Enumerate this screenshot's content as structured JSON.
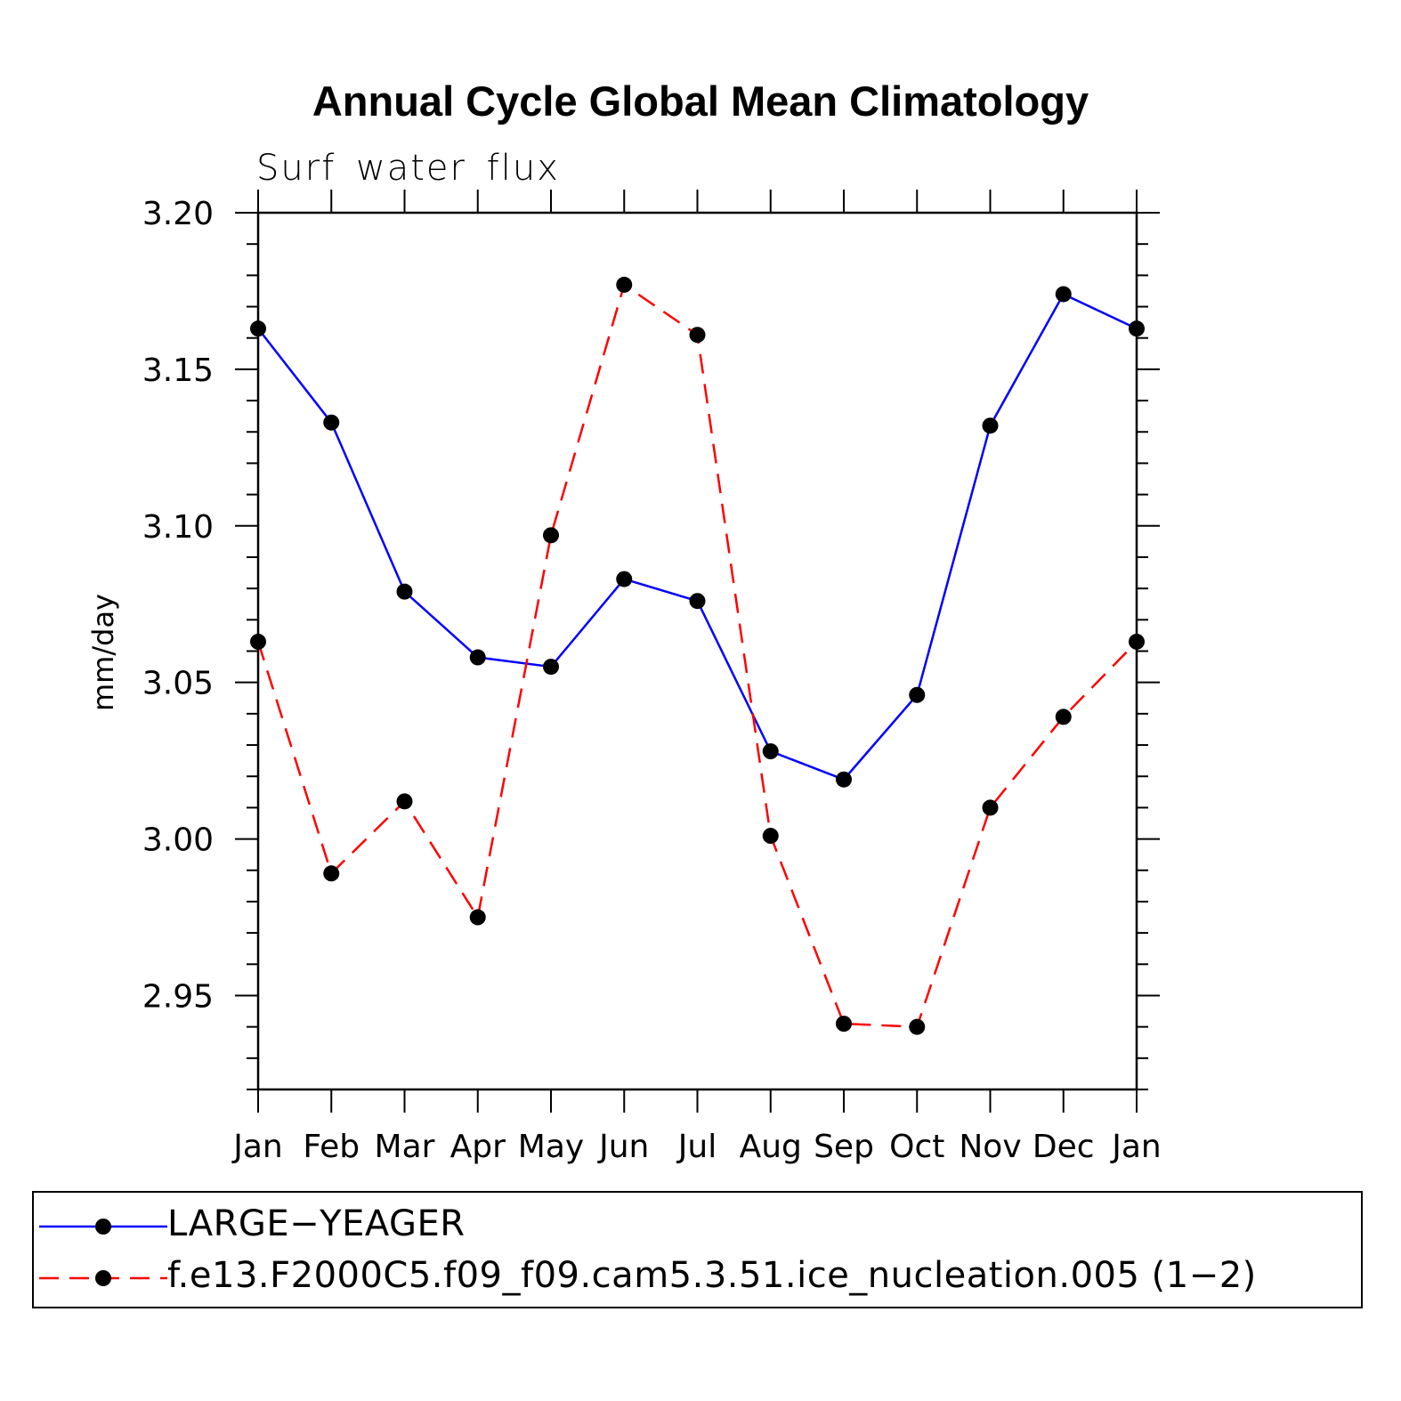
{
  "chart_data": {
    "type": "line",
    "title": "Annual Cycle Global Mean Climatology",
    "subtitle": "Surf water flux",
    "xlabel": "",
    "ylabel": "mm/day",
    "ylim": [
      2.92,
      3.2
    ],
    "y_ticks": [
      "3.20",
      "3.15",
      "3.10",
      "3.05",
      "3.00",
      "2.95"
    ],
    "y_tick_values": [
      3.2,
      3.15,
      3.1,
      3.05,
      3.0,
      2.95
    ],
    "y_minor_step": 0.01,
    "categories": [
      "Jan",
      "Feb",
      "Mar",
      "Apr",
      "May",
      "Jun",
      "Jul",
      "Aug",
      "Sep",
      "Oct",
      "Nov",
      "Dec",
      "Jan"
    ],
    "series": [
      {
        "name": "LARGE−YEAGER",
        "color": "#0000ff",
        "dash": "solid",
        "values": [
          3.163,
          3.133,
          3.079,
          3.058,
          3.055,
          3.083,
          3.076,
          3.028,
          3.019,
          3.046,
          3.132,
          3.174,
          3.163
        ]
      },
      {
        "name": "f.e13.F2000C5.f09_f09.cam5.3.51.ice_nucleation.005 (1−2)",
        "color": "#ff0000",
        "dash": "dashed",
        "values": [
          3.063,
          2.989,
          3.012,
          2.975,
          3.097,
          3.177,
          3.161,
          3.001,
          2.941,
          2.94,
          3.01,
          3.039,
          3.063
        ]
      }
    ],
    "grid": false,
    "legend": "bottom"
  }
}
